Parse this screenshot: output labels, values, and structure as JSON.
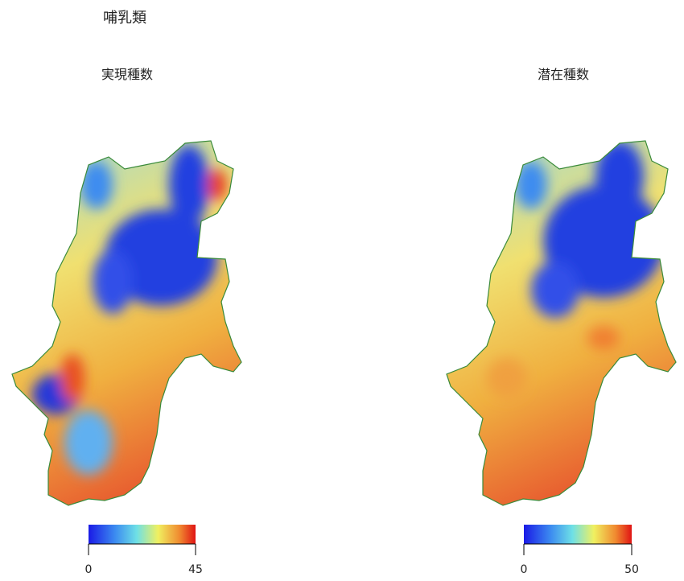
{
  "title": "哺乳類",
  "maps": [
    {
      "title": "実現種数",
      "colorbar": {
        "lim": [
          0,
          45
        ],
        "ticks": [
          0,
          45
        ]
      }
    },
    {
      "title": "潜在種数",
      "colorbar": {
        "lim": [
          0,
          50
        ],
        "ticks": [
          0,
          50
        ]
      }
    }
  ]
}
